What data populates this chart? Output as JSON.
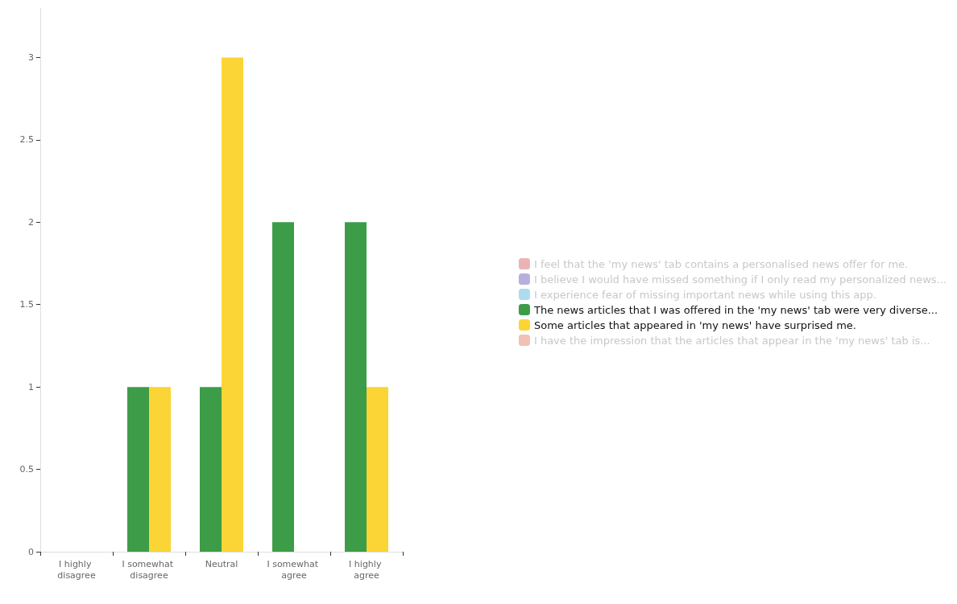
{
  "chart_data": {
    "type": "bar",
    "categories": [
      "I highly disagree",
      "I somewhat disagree",
      "Neutral",
      "I somewhat agree",
      "I highly agree"
    ],
    "series": [
      {
        "name": "I feel that the 'my news' tab contains a personalised news offer for me.",
        "color": "#eab4b4",
        "values": [
          null,
          null,
          null,
          null,
          null
        ]
      },
      {
        "name": "I believe I would have missed something if I only read my personalized news...",
        "color": "#b5b1dc",
        "values": [
          null,
          null,
          null,
          null,
          null
        ]
      },
      {
        "name": "I experience fear of missing important news while using this app.",
        "color": "#addcf0",
        "values": [
          null,
          null,
          null,
          null,
          null
        ]
      },
      {
        "name": "The news articles that I was offered in the 'my news' tab were very diverse...",
        "color": "#3d9c47",
        "values": [
          0,
          1,
          1,
          2,
          2
        ]
      },
      {
        "name": "Some articles that appeared in 'my news' have surprised me.",
        "color": "#fbd535",
        "values": [
          0,
          1,
          3,
          0,
          1
        ]
      },
      {
        "name": "I have the impression that the articles that appear in the 'my news' tab is...",
        "color": "#f2c1b5",
        "values": [
          null,
          null,
          null,
          null,
          null
        ]
      }
    ],
    "ylim": [
      0,
      3.3
    ],
    "yticks": [
      0,
      0.5,
      1,
      1.5,
      2,
      2.5,
      3
    ],
    "grid": false,
    "legend": "right"
  }
}
